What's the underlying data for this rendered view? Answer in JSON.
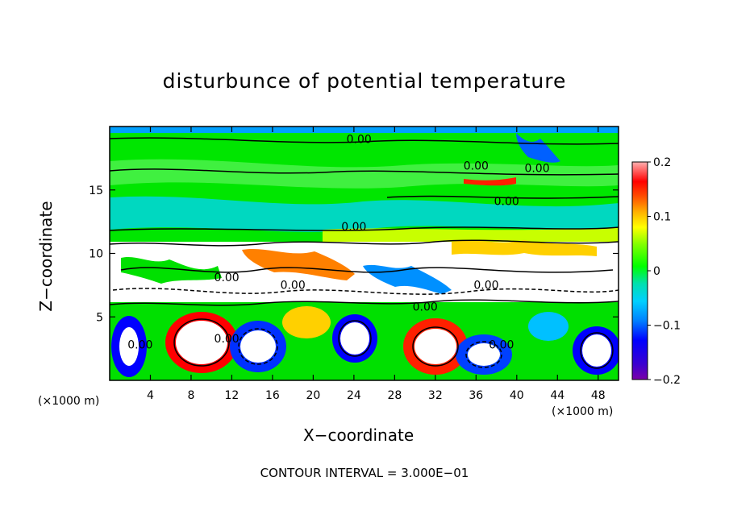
{
  "chart_data": {
    "type": "heatmap",
    "title": "disturbunce of potential temperature",
    "xlabel": "X−coordinate",
    "ylabel": "Z−coordinate",
    "x_unit_left": "(×1000 m)",
    "x_unit_right": "(×1000 m)",
    "footer": "CONTOUR INTERVAL = 3.000E−01",
    "xlim": [
      0,
      50
    ],
    "ylim": [
      0,
      20
    ],
    "x_ticks": [
      4,
      8,
      12,
      16,
      20,
      24,
      28,
      32,
      36,
      40,
      44,
      48
    ],
    "y_ticks": [
      5,
      10,
      15
    ],
    "colorbar": {
      "range": [
        -0.2,
        0.2
      ],
      "tick_values": [
        0.2,
        0.1,
        0,
        -0.1,
        -0.2
      ],
      "tick_labels": [
        "0.2",
        "0.1",
        "0",
        "−0.1",
        "−0.2"
      ]
    },
    "contour_interval": 0.3,
    "contour_labels": [
      {
        "text": "0.00",
        "x": 24.5,
        "z": 18.7
      },
      {
        "text": "0.00",
        "x": 36.0,
        "z": 16.6
      },
      {
        "text": "0.00",
        "x": 42.0,
        "z": 16.4
      },
      {
        "text": "0.00",
        "x": 39.0,
        "z": 13.8
      },
      {
        "text": "0.00",
        "x": 24.0,
        "z": 11.8
      },
      {
        "text": "0.00",
        "x": 11.5,
        "z": 7.8
      },
      {
        "text": "0.00",
        "x": 18.0,
        "z": 7.2
      },
      {
        "text": "0.00",
        "x": 37.0,
        "z": 7.2
      },
      {
        "text": "0.00",
        "x": 31.0,
        "z": 5.5
      },
      {
        "text": "0.00",
        "x": 11.5,
        "z": 3.0
      },
      {
        "text": "0.00",
        "x": 38.5,
        "z": 2.5
      },
      {
        "text": "0.00",
        "x": 3.0,
        "z": 2.5
      }
    ]
  }
}
